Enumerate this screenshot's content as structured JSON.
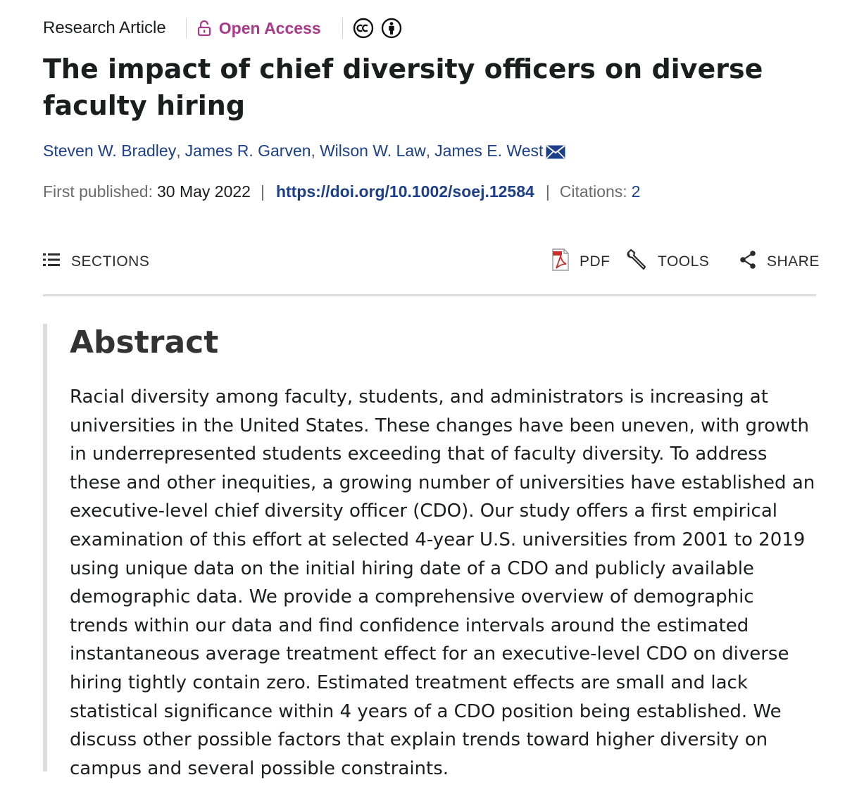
{
  "header": {
    "article_type": "Research Article",
    "access_label": "Open Access",
    "access_color": "#a83a8a",
    "license_icons": [
      "cc-icon",
      "cc-by-icon"
    ]
  },
  "title": "The impact of chief diversity officers on diverse faculty hiring",
  "authors": [
    "Steven W. Bradley",
    "James R. Garven",
    "Wilson W. Law",
    "James E. West"
  ],
  "publication": {
    "first_published_label": "First published:",
    "first_published_date": "30 May 2022",
    "doi": "https://doi.org/10.1002/soej.12584",
    "citations_label": "Citations:",
    "citations_count": "2"
  },
  "toolbar": {
    "sections_label": "SECTIONS",
    "pdf_label": "PDF",
    "tools_label": "TOOLS",
    "share_label": "SHARE"
  },
  "abstract": {
    "heading": "Abstract",
    "text": "Racial diversity among faculty, students, and administrators is increasing at universities in the United States. These changes have been uneven, with growth in underrepresented students exceeding that of faculty diversity. To address these and other inequities, a growing number of universities have established an executive-level chief diversity officer (CDO). Our study offers a first empirical examination of this effort at selected 4-year U.S. universities from 2001 to 2019 using unique data on the initial hiring date of a CDO and publicly available demographic data. We provide a comprehensive overview of demographic trends within our data and find confidence intervals around the estimated instantaneous average treatment effect for an executive-level CDO on diverse hiring tightly contain zero. Estimated treatment effects are small and lack statistical significance within 4 years of a CDO position being established. We discuss other possible factors that explain trends toward higher diversity on campus and several possible constraints."
  },
  "colors": {
    "link": "#1d3f8a",
    "text": "#1c1d1e",
    "muted": "#6b6b6b"
  }
}
